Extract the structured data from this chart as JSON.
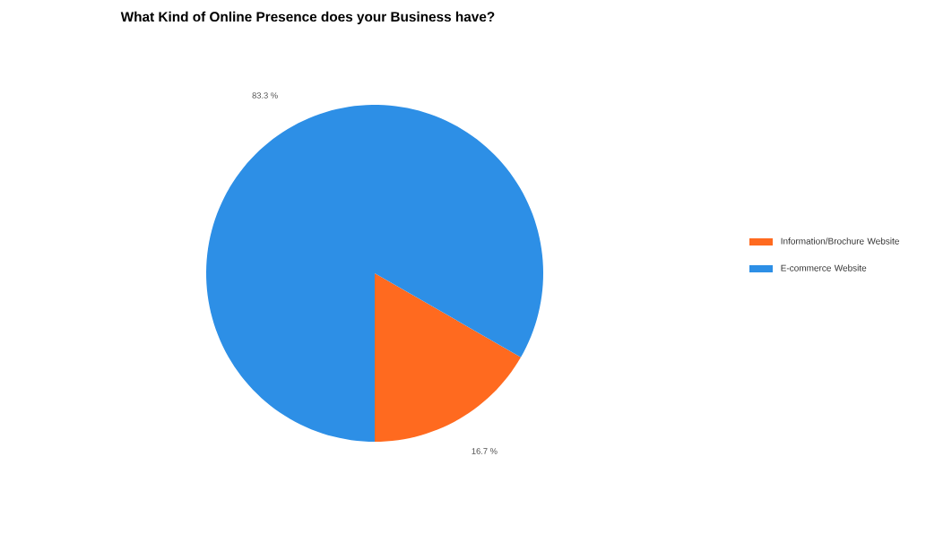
{
  "chart_data": {
    "type": "pie",
    "title": "What Kind of Online Presence does your Business have?",
    "categories": [
      "Information/Brochure Website",
      "E-commerce Website"
    ],
    "values": [
      16.7,
      83.3
    ],
    "colors": [
      "#ff6a1f",
      "#2d8fe6"
    ],
    "value_labels": [
      "16.7 %",
      "83.3 %"
    ],
    "legend": "right"
  }
}
